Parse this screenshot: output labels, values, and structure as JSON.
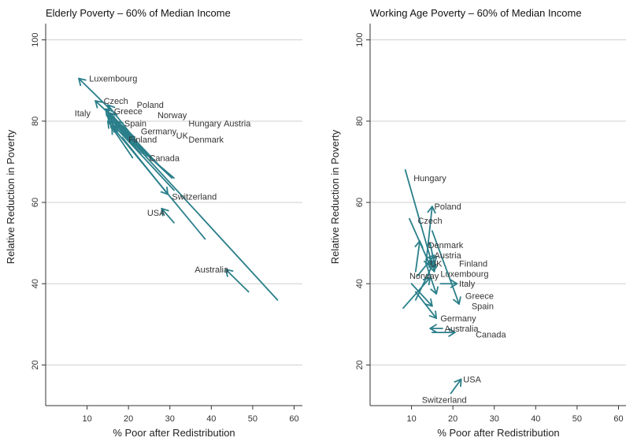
{
  "chart_data": [
    {
      "type": "arrow-scatter",
      "title": "Elderly Poverty – 60% of Median Income",
      "xlabel": "% Poor after Redistribution",
      "ylabel": "Relative Reduction in Poverty",
      "xlim": [
        0,
        62
      ],
      "ylim": [
        10,
        104
      ],
      "xticks": [
        10,
        20,
        30,
        40,
        50,
        60
      ],
      "yticks": [
        20,
        40,
        60,
        80,
        100
      ],
      "grid": "horizontal",
      "color": "#2a7f8a",
      "series": [
        {
          "country": "Luxembourg",
          "from": [
            15.5,
            83
          ],
          "to": [
            8.0,
            90.5
          ]
        },
        {
          "country": "Czech",
          "from": [
            21.5,
            76
          ],
          "to": [
            12.0,
            85.0
          ]
        },
        {
          "country": "Poland",
          "from": [
            22.0,
            75
          ],
          "to": [
            15.0,
            84.0
          ]
        },
        {
          "country": "Italy",
          "from": [
            23.5,
            72
          ],
          "to": [
            14.5,
            83.0
          ]
        },
        {
          "country": "Greece",
          "from": [
            24.5,
            71.5
          ],
          "to": [
            15.0,
            82.0
          ]
        },
        {
          "country": "Norway",
          "from": [
            27.5,
            69
          ],
          "to": [
            15.5,
            82.0
          ]
        },
        {
          "country": "Spain",
          "from": [
            25.5,
            71
          ],
          "to": [
            17.0,
            80.0
          ]
        },
        {
          "country": "Hungary",
          "from": [
            30.5,
            66
          ],
          "to": [
            15.0,
            81.0
          ]
        },
        {
          "country": "Austria",
          "from": [
            56.0,
            36
          ],
          "to": [
            15.0,
            81.5
          ]
        },
        {
          "country": "Germany",
          "from": [
            31.0,
            63
          ],
          "to": [
            15.5,
            80.0
          ]
        },
        {
          "country": "UK",
          "from": [
            38.5,
            51
          ],
          "to": [
            15.0,
            80.0
          ]
        },
        {
          "country": "Denmark",
          "from": [
            31.0,
            66
          ],
          "to": [
            16.0,
            79.0
          ]
        },
        {
          "country": "Finland",
          "from": [
            21.0,
            71
          ],
          "to": [
            16.0,
            78.5
          ]
        },
        {
          "country": "Canada",
          "from": [
            23.0,
            72
          ],
          "to": [
            17.0,
            79.0
          ]
        },
        {
          "country": "Switzerland",
          "from": [
            18.5,
            76
          ],
          "to": [
            29.5,
            62.0
          ]
        },
        {
          "country": "USA",
          "from": [
            31.0,
            55
          ],
          "to": [
            28.0,
            58.5
          ]
        },
        {
          "country": "Australia",
          "from": [
            49.0,
            38
          ],
          "to": [
            43.5,
            43.5
          ]
        }
      ]
    },
    {
      "type": "arrow-scatter",
      "title": "Working Age Poverty – 60% of Median Income",
      "xlabel": "% Poor after Redistribution",
      "ylabel": "Relative Reduction in Poverty",
      "xlim": [
        0,
        62
      ],
      "ylim": [
        10,
        104
      ],
      "xticks": [
        10,
        20,
        30,
        40,
        50,
        60
      ],
      "yticks": [
        20,
        40,
        60,
        80,
        100
      ],
      "grid": "horizontal",
      "color": "#2a7f8a",
      "series": [
        {
          "country": "Hungary",
          "from": [
            8.5,
            68
          ],
          "to": [
            15.5,
            43.0
          ]
        },
        {
          "country": "Poland",
          "from": [
            13.5,
            45
          ],
          "to": [
            15.0,
            59.0
          ]
        },
        {
          "country": "Czech",
          "from": [
            9.5,
            56
          ],
          "to": [
            14.5,
            44.5
          ]
        },
        {
          "country": "Denmark",
          "from": [
            11.0,
            43
          ],
          "to": [
            12.0,
            50.5
          ]
        },
        {
          "country": "Austria",
          "from": [
            11.5,
            42
          ],
          "to": [
            15.5,
            47.0
          ]
        },
        {
          "country": "UK",
          "from": [
            13.5,
            46
          ],
          "to": [
            16.0,
            44.0
          ]
        },
        {
          "country": "Finland",
          "from": [
            15.0,
            53
          ],
          "to": [
            21.5,
            35.0
          ]
        },
        {
          "country": "Luxembourg",
          "from": [
            11.0,
            36
          ],
          "to": [
            15.5,
            45.5
          ]
        },
        {
          "country": "Norway",
          "from": [
            8.0,
            34
          ],
          "to": [
            14.5,
            41.5
          ]
        },
        {
          "country": "Italy",
          "from": [
            17.0,
            40
          ],
          "to": [
            21.0,
            40.0
          ]
        },
        {
          "country": "Greece",
          "from": [
            13.5,
            45
          ],
          "to": [
            16.0,
            37.5
          ]
        },
        {
          "country": "Spain",
          "from": [
            10.0,
            40
          ],
          "to": [
            15.0,
            34.5
          ]
        },
        {
          "country": "Germany",
          "from": [
            11.0,
            38
          ],
          "to": [
            16.0,
            31.5
          ]
        },
        {
          "country": "Australia",
          "from": [
            17.5,
            29
          ],
          "to": [
            14.5,
            29.0
          ]
        },
        {
          "country": "Canada",
          "from": [
            15.0,
            28
          ],
          "to": [
            20.5,
            28.0
          ]
        },
        {
          "country": "USA",
          "from": [
            19.5,
            13
          ],
          "to": [
            22.0,
            16.5
          ]
        },
        {
          "country": "Switzerland",
          "from": [
            14.5,
            50
          ],
          "to": [
            15.5,
            45.0
          ]
        }
      ]
    }
  ],
  "labels": [
    [
      {
        "text": "Luxembourg",
        "x": 10.5,
        "y": 90.5
      },
      {
        "text": "Czech",
        "x": 14.0,
        "y": 85.0
      },
      {
        "text": "Poland",
        "x": 22.0,
        "y": 84.0
      },
      {
        "text": "Italy",
        "x": 7.0,
        "y": 82.0
      },
      {
        "text": "Greece",
        "x": 16.5,
        "y": 82.5
      },
      {
        "text": "Norway",
        "x": 27.0,
        "y": 81.5
      },
      {
        "text": "Spain",
        "x": 19.0,
        "y": 79.5
      },
      {
        "text": "Hungary",
        "x": 34.5,
        "y": 79.5
      },
      {
        "text": "Austria",
        "x": 43.0,
        "y": 79.5
      },
      {
        "text": "Germany",
        "x": 23.0,
        "y": 77.5
      },
      {
        "text": "UK",
        "x": 31.5,
        "y": 76.5
      },
      {
        "text": "Denmark",
        "x": 34.5,
        "y": 75.5
      },
      {
        "text": "Finland",
        "x": 20.0,
        "y": 75.5
      },
      {
        "text": "Canada",
        "x": 25.0,
        "y": 71.0
      },
      {
        "text": "Switzerland",
        "x": 30.5,
        "y": 61.5
      },
      {
        "text": "USA",
        "x": 24.5,
        "y": 57.5
      },
      {
        "text": "Australia",
        "x": 36.0,
        "y": 43.5
      }
    ],
    [
      {
        "text": "Hungary",
        "x": 10.5,
        "y": 66.0
      },
      {
        "text": "Poland",
        "x": 15.5,
        "y": 59.0
      },
      {
        "text": "Czech",
        "x": 11.5,
        "y": 55.5
      },
      {
        "text": "Denmark",
        "x": 14.0,
        "y": 49.5
      },
      {
        "text": "Austria",
        "x": 15.5,
        "y": 47.0
      },
      {
        "text": "UK",
        "x": 14.5,
        "y": 45.0
      },
      {
        "text": "Finland",
        "x": 21.5,
        "y": 45.0
      },
      {
        "text": "Luxembourg",
        "x": 17.0,
        "y": 42.5
      },
      {
        "text": "Norway",
        "x": 9.5,
        "y": 42.0
      },
      {
        "text": "Italy",
        "x": 21.5,
        "y": 40.0
      },
      {
        "text": "Greece",
        "x": 23.0,
        "y": 37.0
      },
      {
        "text": "Spain",
        "x": 24.5,
        "y": 34.5
      },
      {
        "text": "Germany",
        "x": 17.0,
        "y": 31.5
      },
      {
        "text": "Australia",
        "x": 18.0,
        "y": 29.0
      },
      {
        "text": "Canada",
        "x": 25.5,
        "y": 27.5
      },
      {
        "text": "USA",
        "x": 22.5,
        "y": 16.5
      },
      {
        "text": "Switzerland",
        "x": 12.5,
        "y": 11.5
      }
    ]
  ]
}
